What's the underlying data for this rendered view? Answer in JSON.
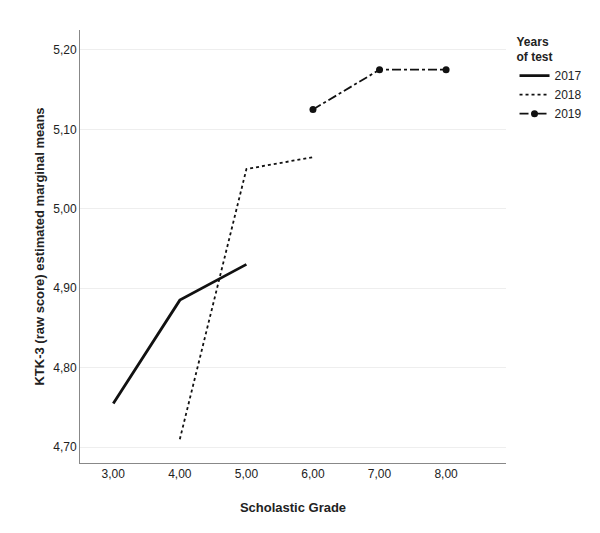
{
  "chart_data": {
    "type": "line",
    "x_label": "Scholastic Grade",
    "y_label": "KTK-3 (raw score) estimated marginal means",
    "legend_title": "Years\nof test",
    "series": [
      {
        "name": "2017",
        "color": "#111111",
        "line_style": "solid",
        "marker": "none",
        "x": [
          3,
          4,
          5
        ],
        "values": [
          4.755,
          4.885,
          4.93
        ]
      },
      {
        "name": "2018",
        "color": "#111111",
        "line_style": "dotted",
        "marker": "none",
        "x": [
          4,
          5,
          6
        ],
        "values": [
          4.71,
          5.05,
          5.065
        ]
      },
      {
        "name": "2019",
        "color": "#111111",
        "line_style": "dashdot",
        "marker": "circle",
        "x": [
          6,
          7,
          8
        ],
        "values": [
          5.125,
          5.175,
          5.175
        ]
      }
    ],
    "xlim": [
      2.5,
      8.9
    ],
    "ylim": [
      4.68,
      5.225
    ],
    "xticks": [
      {
        "value": 3.0,
        "label": "3,00"
      },
      {
        "value": 4.0,
        "label": "4,00"
      },
      {
        "value": 5.0,
        "label": "5,00"
      },
      {
        "value": 6.0,
        "label": "6,00"
      },
      {
        "value": 7.0,
        "label": "7,00"
      },
      {
        "value": 8.0,
        "label": "8,00"
      }
    ],
    "yticks": [
      {
        "value": 4.7,
        "label": "4,70"
      },
      {
        "value": 4.8,
        "label": "4,80"
      },
      {
        "value": 4.9,
        "label": "4,90"
      },
      {
        "value": 5.0,
        "label": "5,00"
      },
      {
        "value": 5.1,
        "label": "5,10"
      },
      {
        "value": 5.2,
        "label": "5,20"
      }
    ],
    "grid": "y",
    "legend": "upper right"
  }
}
